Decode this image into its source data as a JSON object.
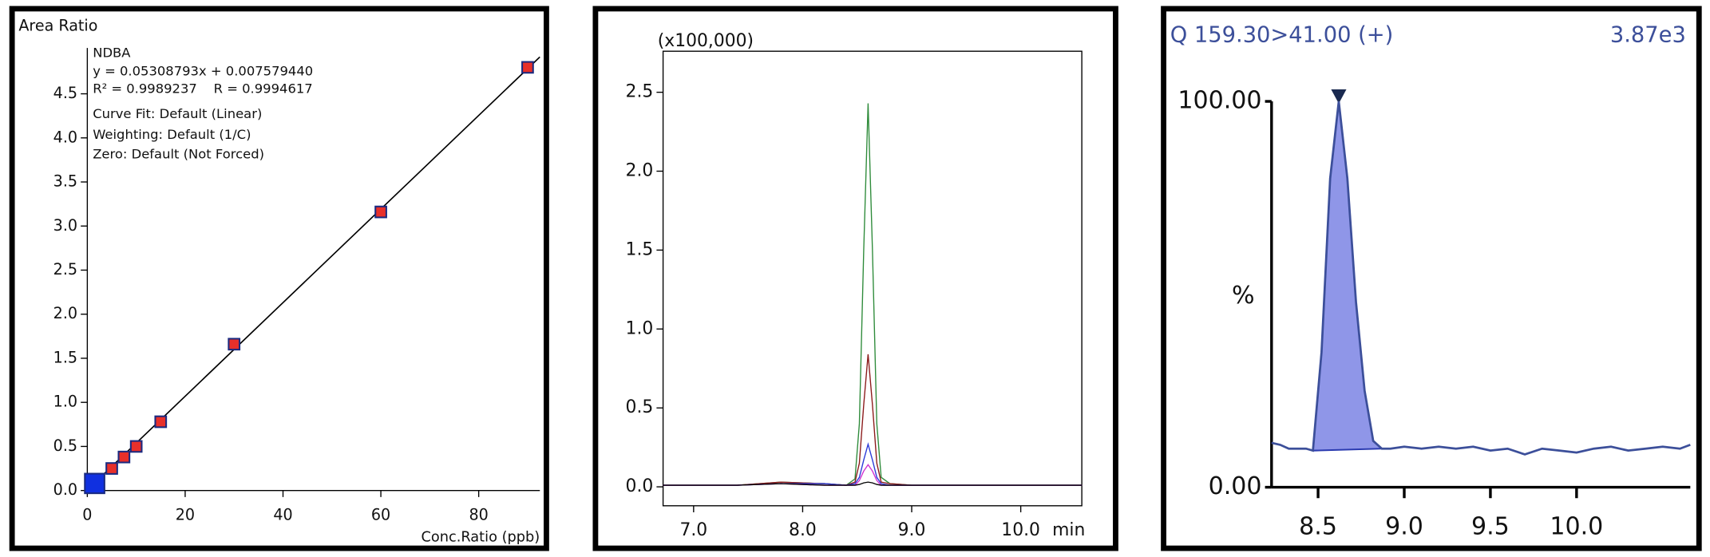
{
  "chart_data": [
    {
      "type": "scatter",
      "ylabel": "Area Ratio",
      "xlabel": "Conc.Ratio (ppb)",
      "annotations": [
        "NDBA",
        "y = 0.05308793x + 0.007579440",
        "R² = 0.9989237    R = 0.9994617",
        "Curve Fit: Default (Linear)",
        "Weighting: Default (1/C)",
        "Zero: Default (Not Forced)"
      ],
      "series": [
        {
          "color": "#e8302a",
          "x": [
            5,
            7.5,
            10,
            15,
            30,
            60,
            90
          ],
          "values": [
            0.25,
            0.38,
            0.5,
            0.78,
            1.66,
            3.16,
            4.8
          ]
        },
        {
          "color": "#1030e0",
          "x": [
            1.5
          ],
          "values": [
            0.08
          ]
        }
      ],
      "fit": {
        "slope": 0.05308793,
        "intercept": 0.00757944,
        "color": "#000000"
      },
      "xlim": [
        0,
        92.5
      ],
      "ylim": [
        0,
        5.02
      ],
      "xticks": [
        0,
        20,
        40,
        60,
        80
      ],
      "yticks": [
        {
          "value": 0,
          "label": "0.0"
        },
        {
          "value": 0.5,
          "label": "0.5"
        },
        {
          "value": 1,
          "label": "1.0"
        },
        {
          "value": 1.5,
          "label": "1.5"
        },
        {
          "value": 2,
          "label": "2.0"
        },
        {
          "value": 2.5,
          "label": "2.5"
        },
        {
          "value": 3,
          "label": "3.0"
        },
        {
          "value": 3.5,
          "label": "3.5"
        },
        {
          "value": 4,
          "label": "4.0"
        },
        {
          "value": 4.5,
          "label": "4.5"
        }
      ]
    },
    {
      "type": "line",
      "ylabel": "(x100,000)",
      "xunit": "min",
      "x": [
        6.72,
        7.4,
        7.8,
        8.2,
        8.4,
        8.48,
        8.52,
        8.56,
        8.6,
        8.64,
        8.68,
        8.72,
        8.8,
        9.0,
        10.56
      ],
      "series": [
        {
          "color": "#2e8b3a",
          "values": [
            0.01,
            0.01,
            0.03,
            0.02,
            0.01,
            0.05,
            0.4,
            1.5,
            2.43,
            1.5,
            0.4,
            0.06,
            0.02,
            0.01,
            0.01
          ]
        },
        {
          "color": "#8b1a1a",
          "values": [
            0.01,
            0.01,
            0.03,
            0.02,
            0.01,
            0.03,
            0.15,
            0.52,
            0.84,
            0.52,
            0.15,
            0.03,
            0.02,
            0.01,
            0.01
          ]
        },
        {
          "color": "#2a3ad8",
          "values": [
            0.01,
            0.01,
            0.02,
            0.02,
            0.01,
            0.02,
            0.06,
            0.17,
            0.27,
            0.17,
            0.06,
            0.02,
            0.01,
            0.01,
            0.01
          ]
        },
        {
          "color": "#d030d0",
          "values": [
            0.01,
            0.01,
            0.02,
            0.01,
            0.01,
            0.01,
            0.04,
            0.1,
            0.14,
            0.1,
            0.04,
            0.01,
            0.01,
            0.01,
            0.01
          ]
        },
        {
          "color": "#000000",
          "values": [
            0.01,
            0.01,
            0.02,
            0.01,
            0.01,
            0.01,
            0.015,
            0.025,
            0.03,
            0.025,
            0.015,
            0.01,
            0.01,
            0.01,
            0.01
          ]
        }
      ],
      "xlim": [
        6.72,
        10.56
      ],
      "ylim": [
        -0.12,
        2.76
      ],
      "xticks": [
        {
          "value": 7,
          "label": "7.0"
        },
        {
          "value": 8,
          "label": "8.0"
        },
        {
          "value": 9,
          "label": "9.0"
        },
        {
          "value": 10,
          "label": "10.0"
        }
      ],
      "yticks": [
        {
          "value": 0,
          "label": "0.0"
        },
        0.5,
        {
          "value": 1,
          "label": "1.0"
        },
        1.5,
        {
          "value": 2,
          "label": "2.0"
        },
        2.5
      ]
    },
    {
      "type": "line",
      "title": "Q 159.30>41.00 (+)",
      "annotation": "3.87e3",
      "ylabel": "%",
      "x": [
        8.23,
        8.28,
        8.33,
        8.38,
        8.43,
        8.47,
        8.52,
        8.57,
        8.62,
        8.67,
        8.72,
        8.77,
        8.82,
        8.87,
        8.92,
        9.0,
        9.1,
        9.2,
        9.3,
        9.4,
        9.5,
        9.6,
        9.7,
        9.8,
        9.9,
        10.0,
        10.1,
        10.2,
        10.3,
        10.4,
        10.5,
        10.6,
        10.66
      ],
      "series": [
        {
          "color": "#3c4f9a",
          "values": [
            11.5,
            11,
            10,
            10,
            10,
            9.5,
            35,
            80,
            100,
            80,
            48,
            25,
            12,
            10,
            10,
            10.5,
            10,
            10.5,
            10,
            10.5,
            9.5,
            10,
            8.5,
            10,
            9.5,
            9,
            10,
            10.5,
            9.5,
            10,
            10.5,
            10,
            11
          ]
        }
      ],
      "peak": {
        "color": "#8f96e8",
        "x": [
          8.47,
          8.52,
          8.57,
          8.62,
          8.67,
          8.72,
          8.77,
          8.82,
          8.87
        ],
        "values": [
          9.5,
          35,
          80,
          100,
          80,
          48,
          25,
          12,
          10
        ]
      },
      "xlim": [
        8.23,
        10.66
      ],
      "ylim": [
        0,
        100
      ],
      "xticks": [
        8.5,
        {
          "value": 9,
          "label": "9.0"
        },
        9.5,
        {
          "value": 10,
          "label": "10.0"
        }
      ],
      "yticks": [
        {
          "value": 0,
          "label": "0.00"
        },
        {
          "value": 100,
          "label": "100.00"
        }
      ]
    }
  ]
}
